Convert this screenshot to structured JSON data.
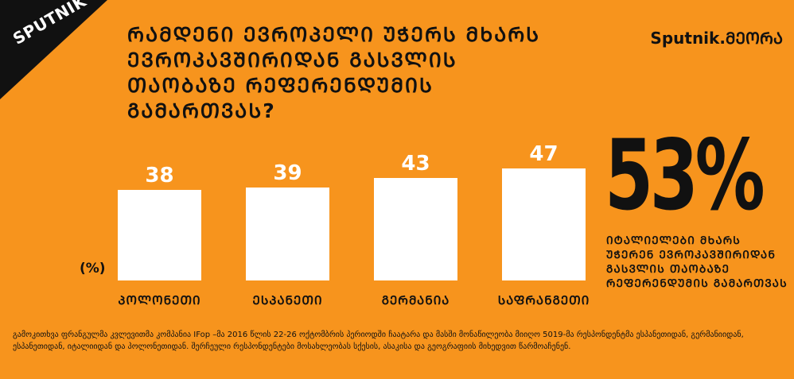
{
  "logo": {
    "text": "SPUTNIK"
  },
  "brand": "Sputnik.ᲛᲔᲝᲠᲐ",
  "title": "ᲠᲐᲛᲓᲔᲜᲘ ᲔᲕᲠᲝᲞᲔᲚᲘ ᲣᲭᲔᲠᲡ ᲛᲮᲐᲠᲡ ᲔᲕᲠᲝᲙᲐᲕᲨᲘᲠᲘᲓᲐᲜ ᲒᲐᲡᲕᲚᲘᲡ ᲗᲐᲝᲑᲐᲖᲔ ᲠᲔᲤᲔᲠᲔᲜᲓᲣᲛᲘᲡ ᲒᲐᲛᲐᲠᲗᲕᲐᲡ?",
  "chart_data": {
    "type": "bar",
    "categories": [
      "ᲞᲝᲚᲝᲜᲔᲗᲘ",
      "ᲔᲡᲞᲐᲜᲔᲗᲘ",
      "ᲒᲔᲠᲛᲐᲜᲘᲐ",
      "ᲡᲐᲤᲠᲐᲜᲒᲔᲗᲘ"
    ],
    "values": [
      38,
      39,
      43,
      47
    ],
    "unit_label": "(%)",
    "bar_color": "#ffffff",
    "ylim": [
      0,
      60
    ],
    "grid": false
  },
  "highlight": {
    "value": "53%",
    "label": "ᲘᲢᲐᲚᲘᲔᲚᲔᲑᲘ ᲛᲮᲐᲠᲡ ᲣᲭᲔᲠᲔᲜ ᲔᲕᲠᲝᲙᲐᲕᲨᲘᲠᲘᲓᲐᲜ ᲒᲐᲡᲕᲚᲘᲡ ᲗᲐᲝᲑᲐᲖᲔ ᲠᲔᲤᲔᲠᲔᲜᲓᲣᲛᲘᲡ ᲒᲐᲛᲐᲠᲗᲕᲐᲡ"
  },
  "footnote": "გამოკითხვა ფრანგულმა კვლევითმა კომპანია IFop –მა 2016 წლის 22-26 ოქტომბრის პერიოდში ჩაატარა და მასში მონაწილეობა მიიღო 5019-მა რესპონდენტმა ესპანეთიდან, გერმანიიდან, ესპანეთიდან, იტალიიდან და პოლონეთიდან. შერჩეული რესპონდენტები მოსახლეობას სქესის, ასაკისა და გეოგრაფიის მიხედვით წარმოაჩენენ."
}
